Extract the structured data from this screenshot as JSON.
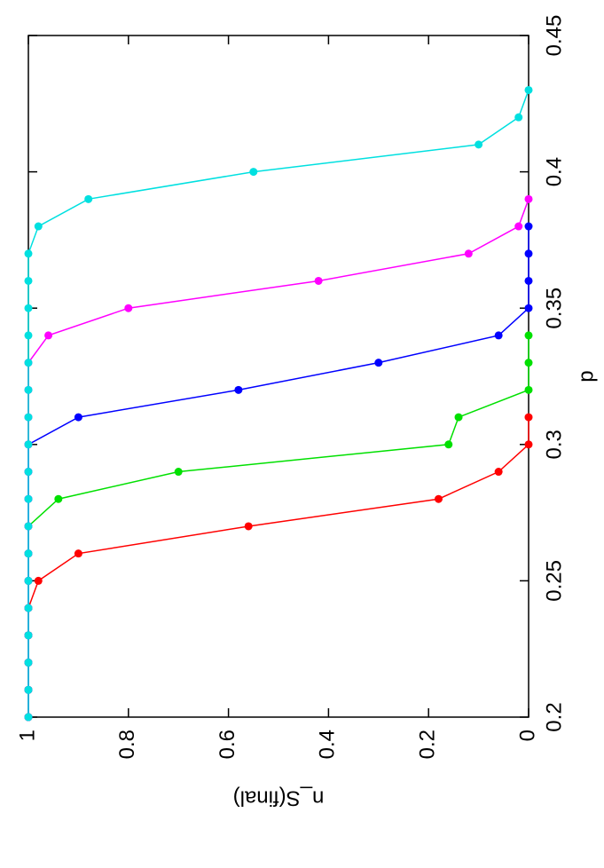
{
  "chart_data": {
    "type": "line",
    "x_label": "p",
    "y_label": "n_S(final)",
    "x": [
      0.2,
      0.21,
      0.22,
      0.23,
      0.24,
      0.25,
      0.26,
      0.27,
      0.28,
      0.29,
      0.3,
      0.31,
      0.32,
      0.33,
      0.34,
      0.35,
      0.36,
      0.37,
      0.38,
      0.39,
      0.4,
      0.41,
      0.42,
      0.43
    ],
    "xlim": [
      0.2,
      0.45
    ],
    "xticks": [
      0.2,
      0.25,
      0.3,
      0.35,
      0.4,
      0.45
    ],
    "ylim": [
      0,
      1
    ],
    "yticks": [
      0,
      0.2,
      0.4,
      0.6,
      0.8,
      1
    ],
    "series": [
      {
        "color": "#ff0000",
        "values": [
          1,
          1,
          1,
          1,
          1,
          0.98,
          0.9,
          0.56,
          0.18,
          0.06,
          0,
          0,
          null,
          null,
          null,
          null,
          null,
          null,
          null,
          null,
          null,
          null,
          null,
          null
        ]
      },
      {
        "color": "#00e000",
        "values": [
          1,
          1,
          1,
          1,
          1,
          1,
          1,
          1,
          0.94,
          0.7,
          0.16,
          0.14,
          0,
          0,
          0,
          null,
          null,
          null,
          null,
          null,
          null,
          null,
          null,
          null
        ]
      },
      {
        "color": "#0000ff",
        "values": [
          1,
          1,
          1,
          1,
          1,
          1,
          1,
          1,
          1,
          1,
          1,
          0.9,
          0.58,
          0.3,
          0.06,
          0,
          0,
          0,
          0,
          null,
          null,
          null,
          null,
          null
        ]
      },
      {
        "color": "#ff00ff",
        "values": [
          1,
          1,
          1,
          1,
          1,
          1,
          1,
          1,
          1,
          1,
          1,
          1,
          1,
          1,
          0.96,
          0.8,
          0.42,
          0.12,
          0.02,
          0,
          null,
          null,
          null,
          null
        ]
      },
      {
        "color": "#00e0e0",
        "values": [
          1,
          1,
          1,
          1,
          1,
          1,
          1,
          1,
          1,
          1,
          1,
          1,
          1,
          1,
          1,
          1,
          1,
          1,
          0.98,
          0.88,
          0.55,
          0.1,
          0.02,
          0
        ]
      }
    ]
  }
}
